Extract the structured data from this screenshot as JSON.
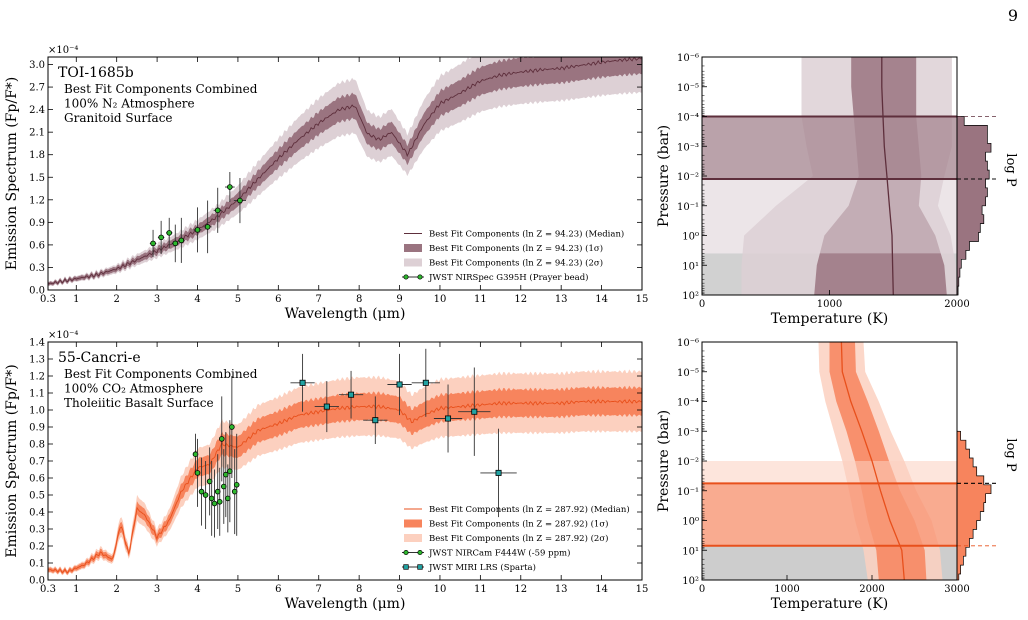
{
  "page_number": "9",
  "chart_data": [
    {
      "type": "line",
      "panel": "top-spectrum",
      "planet_label": "TOI-1685b",
      "annotation_lines": [
        "Best Fit Components Combined",
        "100% N₂ Atmosphere",
        "Granitoid Surface"
      ],
      "xlabel": "Wavelength (μm)",
      "ylabel": "Emission Spectrum (Fp/F*)",
      "y_scale_label": "×10⁻⁴",
      "xlim": [
        0.3,
        15
      ],
      "ylim": [
        0,
        3.1
      ],
      "x_ticks": [
        0.3,
        1,
        2,
        3,
        4,
        5,
        6,
        7,
        8,
        9,
        10,
        11,
        12,
        13,
        14,
        15
      ],
      "y_ticks": [
        0.0,
        0.3,
        0.6,
        0.9,
        1.2,
        1.5,
        1.8,
        2.1,
        2.4,
        2.7,
        3.0
      ],
      "legend_position": "bottom-right",
      "colors": {
        "median": "#5e2f3c",
        "sigma1": "#9a7480",
        "sigma2": "#ddd0d5",
        "data_marker": "#2db82d"
      },
      "series": [
        {
          "name": "Best Fit Components (ln Z = 94.23) (Median)",
          "kind": "median",
          "x": [
            0.3,
            1,
            1.5,
            2,
            2.5,
            3,
            3.5,
            4,
            4.5,
            5,
            5.5,
            6,
            6.5,
            7,
            7.5,
            7.9,
            8.2,
            8.5,
            8.8,
            9.2,
            9.6,
            10,
            10.5,
            11,
            11.5,
            12,
            12.5,
            13,
            13.5,
            14,
            14.5,
            15
          ],
          "y": [
            0.08,
            0.15,
            0.2,
            0.28,
            0.4,
            0.52,
            0.65,
            0.8,
            0.98,
            1.2,
            1.48,
            1.75,
            2.0,
            2.22,
            2.4,
            2.45,
            2.08,
            2.0,
            2.1,
            1.8,
            2.2,
            2.48,
            2.62,
            2.78,
            2.86,
            2.9,
            2.93,
            2.95,
            2.99,
            3.03,
            3.06,
            3.08
          ]
        },
        {
          "name": "Best Fit Components (ln Z = 94.23) (1σ)",
          "kind": "band1",
          "half_width_fraction": 0.06
        },
        {
          "name": "Best Fit Components (ln Z = 94.23) (2σ)",
          "kind": "band2",
          "half_width_fraction": 0.14
        },
        {
          "name": "JWST NIRSpec G395H (Prayer bead)",
          "kind": "data",
          "marker": "circle",
          "points": [
            {
              "x": 2.9,
              "y": 0.62,
              "xerr": 0.08,
              "yerr": 0.18
            },
            {
              "x": 3.1,
              "y": 0.7,
              "xerr": 0.08,
              "yerr": 0.22
            },
            {
              "x": 3.3,
              "y": 0.76,
              "xerr": 0.08,
              "yerr": 0.2
            },
            {
              "x": 3.45,
              "y": 0.62,
              "xerr": 0.08,
              "yerr": 0.25
            },
            {
              "x": 3.6,
              "y": 0.66,
              "xerr": 0.08,
              "yerr": 0.3
            },
            {
              "x": 4.0,
              "y": 0.8,
              "xerr": 0.1,
              "yerr": 0.3
            },
            {
              "x": 4.25,
              "y": 0.84,
              "xerr": 0.1,
              "yerr": 0.35
            },
            {
              "x": 4.5,
              "y": 1.06,
              "xerr": 0.1,
              "yerr": 0.3
            },
            {
              "x": 4.8,
              "y": 1.37,
              "xerr": 0.12,
              "yerr": 0.2
            },
            {
              "x": 5.05,
              "y": 1.19,
              "xerr": 0.15,
              "yerr": 0.3
            }
          ]
        }
      ]
    },
    {
      "type": "line",
      "panel": "top-pt-profile",
      "xlabel": "Temperature (K)",
      "ylabel": "Pressure (bar)",
      "side_label": "log P_surf",
      "xlim": [
        0,
        2000
      ],
      "ylim_log10": [
        -6,
        2
      ],
      "x_ticks": [
        0,
        1000,
        2000
      ],
      "y_ticks": [
        "10⁻⁶",
        "10⁻⁵",
        "10⁻⁴",
        "10⁻³",
        "10⁻²",
        "10⁻¹",
        "10⁰",
        "10¹",
        "10²"
      ],
      "colors": {
        "median": "#5e2f3c",
        "sigma1": "#9a7480",
        "sigma2": "#ddd0d5",
        "surface": "#cccccc"
      },
      "temperature_profile": {
        "log10_p": [
          -6,
          -5,
          -4,
          -3,
          -2,
          -1,
          0,
          1,
          2
        ],
        "t_median": [
          1410,
          1410,
          1420,
          1430,
          1450,
          1470,
          1490,
          1495,
          1500
        ],
        "t_1sigma": [
          [
            1170,
            1680
          ],
          [
            1170,
            1680
          ],
          [
            1190,
            1680
          ],
          [
            1210,
            1700
          ],
          [
            1230,
            1720
          ],
          [
            1150,
            1700
          ],
          [
            960,
            1830
          ],
          [
            900,
            1900
          ],
          [
            880,
            1920
          ]
        ],
        "t_2sigma": [
          [
            780,
            1960
          ],
          [
            780,
            1960
          ],
          [
            780,
            1960
          ],
          [
            820,
            1960
          ],
          [
            870,
            1900
          ],
          [
            580,
            1850
          ],
          [
            330,
            1950
          ],
          [
            310,
            1990
          ],
          [
            310,
            2000
          ]
        ]
      },
      "surface_pressure": {
        "median_log10": -1.9,
        "sigma1_log10": [
          -4.0,
          -1.9
        ],
        "sigma2_log10": [
          -4.0,
          0.6
        ],
        "histogram": {
          "log10_p": [
            -4.0,
            -3.7,
            -3.4,
            -3.1,
            -2.8,
            -2.5,
            -2.2,
            -1.9,
            -1.6,
            -1.3,
            -1.0,
            -0.7,
            -0.4,
            -0.1,
            0.2,
            0.5,
            0.8,
            1.1,
            1.4,
            1.7,
            2.0
          ],
          "count": [
            0.2,
            0.85,
            0.85,
            0.95,
            0.8,
            0.85,
            0.9,
            0.8,
            0.85,
            0.8,
            0.7,
            0.75,
            0.65,
            0.6,
            0.35,
            0.25,
            0.12,
            0.08,
            0.05,
            0.03,
            0.0
          ]
        }
      }
    },
    {
      "type": "line",
      "panel": "bottom-spectrum",
      "planet_label": "55-Cancri-e",
      "annotation_lines": [
        "Best Fit Components Combined",
        "100% CO₂ Atmosphere",
        "Tholeiitic Basalt Surface"
      ],
      "xlabel": "Wavelength (μm)",
      "ylabel": "Emission Spectrum (Fp/F*)",
      "y_scale_label": "×10⁻⁴",
      "xlim": [
        0.3,
        15
      ],
      "ylim": [
        0,
        1.4
      ],
      "x_ticks": [
        0.3,
        1,
        2,
        3,
        4,
        5,
        6,
        7,
        8,
        9,
        10,
        11,
        12,
        13,
        14,
        15
      ],
      "y_ticks": [
        0.0,
        0.1,
        0.2,
        0.3,
        0.4,
        0.5,
        0.6,
        0.7,
        0.8,
        0.9,
        1.0,
        1.1,
        1.2,
        1.3,
        1.4
      ],
      "legend_position": "bottom-right",
      "colors": {
        "median": "#e8501c",
        "sigma1": "#f7845d",
        "sigma2": "#fcd0bf",
        "data_marker": "#2db82d",
        "data_marker_2": "#22a3a3"
      },
      "series": [
        {
          "name": "Best Fit Components (ln Z = 287.92) (Median)",
          "kind": "median",
          "x": [
            0.3,
            0.8,
            1.2,
            1.6,
            1.9,
            2.1,
            2.3,
            2.5,
            2.7,
            3.0,
            3.3,
            3.6,
            4.0,
            4.3,
            4.6,
            5.0,
            5.5,
            6.0,
            6.5,
            7.0,
            7.5,
            8.0,
            8.5,
            9.0,
            9.3,
            9.6,
            10.0,
            10.5,
            11,
            11.5,
            12,
            12.5,
            13,
            13.5,
            14,
            14.5,
            15
          ],
          "y": [
            0.06,
            0.05,
            0.09,
            0.16,
            0.12,
            0.33,
            0.15,
            0.42,
            0.38,
            0.25,
            0.35,
            0.52,
            0.66,
            0.68,
            0.8,
            0.78,
            0.88,
            0.92,
            0.97,
            0.99,
            1.01,
            1.02,
            1.02,
            1.0,
            0.93,
            0.97,
            1.01,
            1.02,
            1.03,
            1.04,
            1.04,
            1.04,
            1.04,
            1.05,
            1.05,
            1.05,
            1.05
          ]
        },
        {
          "name": "Best Fit Components (ln Z = 287.92) (1σ)",
          "kind": "band1",
          "half_width_fraction": 0.07
        },
        {
          "name": "Best Fit Components (ln Z = 287.92) (2σ)",
          "kind": "band2",
          "half_width_fraction": 0.16
        },
        {
          "name": "JWST NIRCam F444W (-59 ppm)",
          "kind": "data",
          "marker": "circle",
          "points": [
            {
              "x": 3.95,
              "y": 0.74,
              "xerr": 0.02,
              "yerr": 0.12
            },
            {
              "x": 4.0,
              "y": 0.63,
              "xerr": 0.02,
              "yerr": 0.2
            },
            {
              "x": 4.1,
              "y": 0.52,
              "xerr": 0.02,
              "yerr": 0.2
            },
            {
              "x": 4.2,
              "y": 0.5,
              "xerr": 0.02,
              "yerr": 0.2
            },
            {
              "x": 4.3,
              "y": 0.58,
              "xerr": 0.02,
              "yerr": 0.2
            },
            {
              "x": 4.35,
              "y": 0.48,
              "xerr": 0.02,
              "yerr": 0.22
            },
            {
              "x": 4.42,
              "y": 0.45,
              "xerr": 0.02,
              "yerr": 0.2
            },
            {
              "x": 4.5,
              "y": 0.52,
              "xerr": 0.02,
              "yerr": 0.22
            },
            {
              "x": 4.55,
              "y": 0.46,
              "xerr": 0.02,
              "yerr": 0.2
            },
            {
              "x": 4.6,
              "y": 0.83,
              "xerr": 0.02,
              "yerr": 0.25
            },
            {
              "x": 4.65,
              "y": 0.55,
              "xerr": 0.02,
              "yerr": 0.22
            },
            {
              "x": 4.7,
              "y": 0.62,
              "xerr": 0.02,
              "yerr": 0.25
            },
            {
              "x": 4.75,
              "y": 0.48,
              "xerr": 0.02,
              "yerr": 0.2
            },
            {
              "x": 4.8,
              "y": 0.64,
              "xerr": 0.02,
              "yerr": 0.3
            },
            {
              "x": 4.85,
              "y": 0.9,
              "xerr": 0.02,
              "yerr": 0.3
            },
            {
              "x": 4.92,
              "y": 0.52,
              "xerr": 0.02,
              "yerr": 0.25
            },
            {
              "x": 4.97,
              "y": 0.56,
              "xerr": 0.02,
              "yerr": 0.3
            }
          ]
        },
        {
          "name": "JWST MIRI LRS (Sparta)",
          "kind": "data",
          "marker": "square",
          "points": [
            {
              "x": 6.6,
              "y": 1.16,
              "xerr": 0.3,
              "yerr": 0.17
            },
            {
              "x": 7.2,
              "y": 1.02,
              "xerr": 0.3,
              "yerr": 0.15
            },
            {
              "x": 7.8,
              "y": 1.09,
              "xerr": 0.3,
              "yerr": 0.14
            },
            {
              "x": 8.4,
              "y": 0.94,
              "xerr": 0.3,
              "yerr": 0.14
            },
            {
              "x": 9.0,
              "y": 1.15,
              "xerr": 0.3,
              "yerr": 0.18
            },
            {
              "x": 9.65,
              "y": 1.16,
              "xerr": 0.35,
              "yerr": 0.2
            },
            {
              "x": 10.2,
              "y": 0.95,
              "xerr": 0.35,
              "yerr": 0.2
            },
            {
              "x": 10.85,
              "y": 0.99,
              "xerr": 0.4,
              "yerr": 0.26
            },
            {
              "x": 11.45,
              "y": 0.63,
              "xerr": 0.45,
              "yerr": 0.26
            }
          ]
        }
      ]
    },
    {
      "type": "line",
      "panel": "bottom-pt-profile",
      "xlabel": "Temperature (K)",
      "ylabel": "Pressure (bar)",
      "side_label": "log P_surf",
      "xlim": [
        0,
        3000
      ],
      "ylim_log10": [
        -6,
        2
      ],
      "x_ticks": [
        0,
        1000,
        2000,
        3000
      ],
      "y_ticks": [
        "10⁻⁶",
        "10⁻⁵",
        "10⁻⁴",
        "10⁻³",
        "10⁻²",
        "10⁻¹",
        "10⁰",
        "10¹",
        "10²"
      ],
      "colors": {
        "median": "#e8501c",
        "sigma1": "#f7845d",
        "sigma2": "#fcd0bf",
        "surface": "#c8c8c8"
      },
      "temperature_profile": {
        "log10_p": [
          -6,
          -5,
          -4,
          -3,
          -2,
          -1,
          0,
          1,
          2
        ],
        "t_median": [
          1640,
          1650,
          1750,
          1880,
          2000,
          2100,
          2210,
          2350,
          2380
        ],
        "t_1sigma": [
          [
            1500,
            1800
          ],
          [
            1500,
            1810
          ],
          [
            1580,
            1950
          ],
          [
            1700,
            2080
          ],
          [
            1800,
            2200
          ],
          [
            1880,
            2330
          ],
          [
            1950,
            2500
          ],
          [
            2050,
            2620
          ],
          [
            2080,
            2640
          ]
        ],
        "t_2sigma": [
          [
            1370,
            1900
          ],
          [
            1380,
            1920
          ],
          [
            1450,
            2080
          ],
          [
            1550,
            2220
          ],
          [
            1650,
            2380
          ],
          [
            1730,
            2520
          ],
          [
            1800,
            2700
          ],
          [
            1900,
            2800
          ],
          [
            1950,
            2830
          ]
        ]
      },
      "surface_pressure": {
        "median_log10": -1.25,
        "sigma1_log10": [
          -1.25,
          0.85
        ],
        "sigma2_log10": [
          -2.0,
          0.85
        ],
        "histogram": {
          "log10_p": [
            -3.0,
            -2.7,
            -2.4,
            -2.1,
            -1.8,
            -1.5,
            -1.2,
            -0.9,
            -0.6,
            -0.3,
            0.0,
            0.3,
            0.6,
            0.9,
            1.2,
            1.5,
            1.8,
            2.0
          ],
          "count": [
            0.1,
            0.25,
            0.35,
            0.45,
            0.55,
            0.75,
            0.95,
            0.8,
            0.75,
            0.65,
            0.55,
            0.45,
            0.35,
            0.25,
            0.18,
            0.1,
            0.05,
            0.0
          ]
        }
      }
    }
  ]
}
